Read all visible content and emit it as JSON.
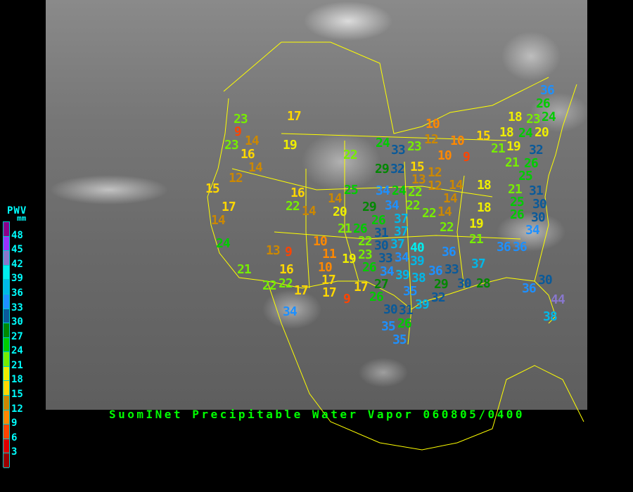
{
  "title": "SuomINet Precipitable Water Vapor 060805/0400",
  "legend": {
    "title": "PWV",
    "unit": "mm",
    "labels": [
      "48",
      "45",
      "42",
      "39",
      "36",
      "33",
      "30",
      "27",
      "24",
      "21",
      "18",
      "15",
      "12",
      "9",
      "6",
      "3"
    ],
    "colors": [
      "#8b008b",
      "#9933ff",
      "#8877cc",
      "#00eeee",
      "#00b8e8",
      "#1e90ff",
      "#0a5a9a",
      "#008800",
      "#00cc00",
      "#77ee00",
      "#eeee00",
      "#ffd700",
      "#cc8800",
      "#ff8800",
      "#ff4400",
      "#dd0000",
      "#990000"
    ]
  },
  "stations": [
    {
      "value": "17"
    },
    {
      "value": "23"
    },
    {
      "value": "9"
    },
    {
      "value": "23"
    },
    {
      "value": "14"
    },
    {
      "value": "16"
    },
    {
      "value": "19"
    },
    {
      "value": "22"
    },
    {
      "value": "14"
    },
    {
      "value": "12"
    },
    {
      "value": "15"
    },
    {
      "value": "25"
    },
    {
      "value": "16"
    },
    {
      "value": "22"
    },
    {
      "value": "14"
    },
    {
      "value": "14"
    },
    {
      "value": "20"
    },
    {
      "value": "17"
    },
    {
      "value": "14"
    },
    {
      "value": "24"
    },
    {
      "value": "33"
    },
    {
      "value": "23"
    },
    {
      "value": "10"
    },
    {
      "value": "12"
    },
    {
      "value": "10"
    },
    {
      "value": "15"
    },
    {
      "value": "10"
    },
    {
      "value": "9"
    },
    {
      "value": "21"
    },
    {
      "value": "29"
    },
    {
      "value": "32"
    },
    {
      "value": "15"
    },
    {
      "value": "12"
    },
    {
      "value": "13"
    },
    {
      "value": "12"
    },
    {
      "value": "14"
    },
    {
      "value": "14"
    },
    {
      "value": "18"
    },
    {
      "value": "34"
    },
    {
      "value": "24"
    },
    {
      "value": "22"
    },
    {
      "value": "18"
    },
    {
      "value": "36"
    },
    {
      "value": "26"
    },
    {
      "value": "24"
    },
    {
      "value": "18"
    },
    {
      "value": "23"
    },
    {
      "value": "18"
    },
    {
      "value": "24"
    },
    {
      "value": "20"
    },
    {
      "value": "19"
    },
    {
      "value": "32"
    },
    {
      "value": "21"
    },
    {
      "value": "26"
    },
    {
      "value": "25"
    },
    {
      "value": "21"
    },
    {
      "value": "31"
    },
    {
      "value": "25"
    },
    {
      "value": "26"
    },
    {
      "value": "30"
    },
    {
      "value": "30"
    },
    {
      "value": "22"
    },
    {
      "value": "14"
    },
    {
      "value": "22"
    },
    {
      "value": "19"
    },
    {
      "value": "34"
    },
    {
      "value": "21"
    },
    {
      "value": "36"
    },
    {
      "value": "36"
    },
    {
      "value": "36"
    },
    {
      "value": "29"
    },
    {
      "value": "34"
    },
    {
      "value": "37"
    },
    {
      "value": "22"
    },
    {
      "value": "21"
    },
    {
      "value": "26"
    },
    {
      "value": "26"
    },
    {
      "value": "31"
    },
    {
      "value": "37"
    },
    {
      "value": "22"
    },
    {
      "value": "37"
    },
    {
      "value": "30"
    },
    {
      "value": "33"
    },
    {
      "value": "34"
    },
    {
      "value": "40"
    },
    {
      "value": "10"
    },
    {
      "value": "11"
    },
    {
      "value": "10"
    },
    {
      "value": "19"
    },
    {
      "value": "23"
    },
    {
      "value": "26"
    },
    {
      "value": "34"
    },
    {
      "value": "39"
    },
    {
      "value": "39"
    },
    {
      "value": "38"
    },
    {
      "value": "36"
    },
    {
      "value": "29"
    },
    {
      "value": "27"
    },
    {
      "value": "26"
    },
    {
      "value": "17"
    },
    {
      "value": "17"
    },
    {
      "value": "9"
    },
    {
      "value": "35"
    },
    {
      "value": "32"
    },
    {
      "value": "33"
    },
    {
      "value": "37"
    },
    {
      "value": "30"
    },
    {
      "value": "28"
    },
    {
      "value": "36"
    },
    {
      "value": "30"
    },
    {
      "value": "44"
    },
    {
      "value": "38"
    },
    {
      "value": "39"
    },
    {
      "value": "30"
    },
    {
      "value": "31"
    },
    {
      "value": "26"
    },
    {
      "value": "35"
    },
    {
      "value": "35"
    },
    {
      "value": "24"
    },
    {
      "value": "13"
    },
    {
      "value": "9"
    },
    {
      "value": "16"
    },
    {
      "value": "21"
    },
    {
      "value": "22"
    },
    {
      "value": "22"
    },
    {
      "value": "17"
    },
    {
      "value": "17"
    },
    {
      "value": "34"
    }
  ]
}
